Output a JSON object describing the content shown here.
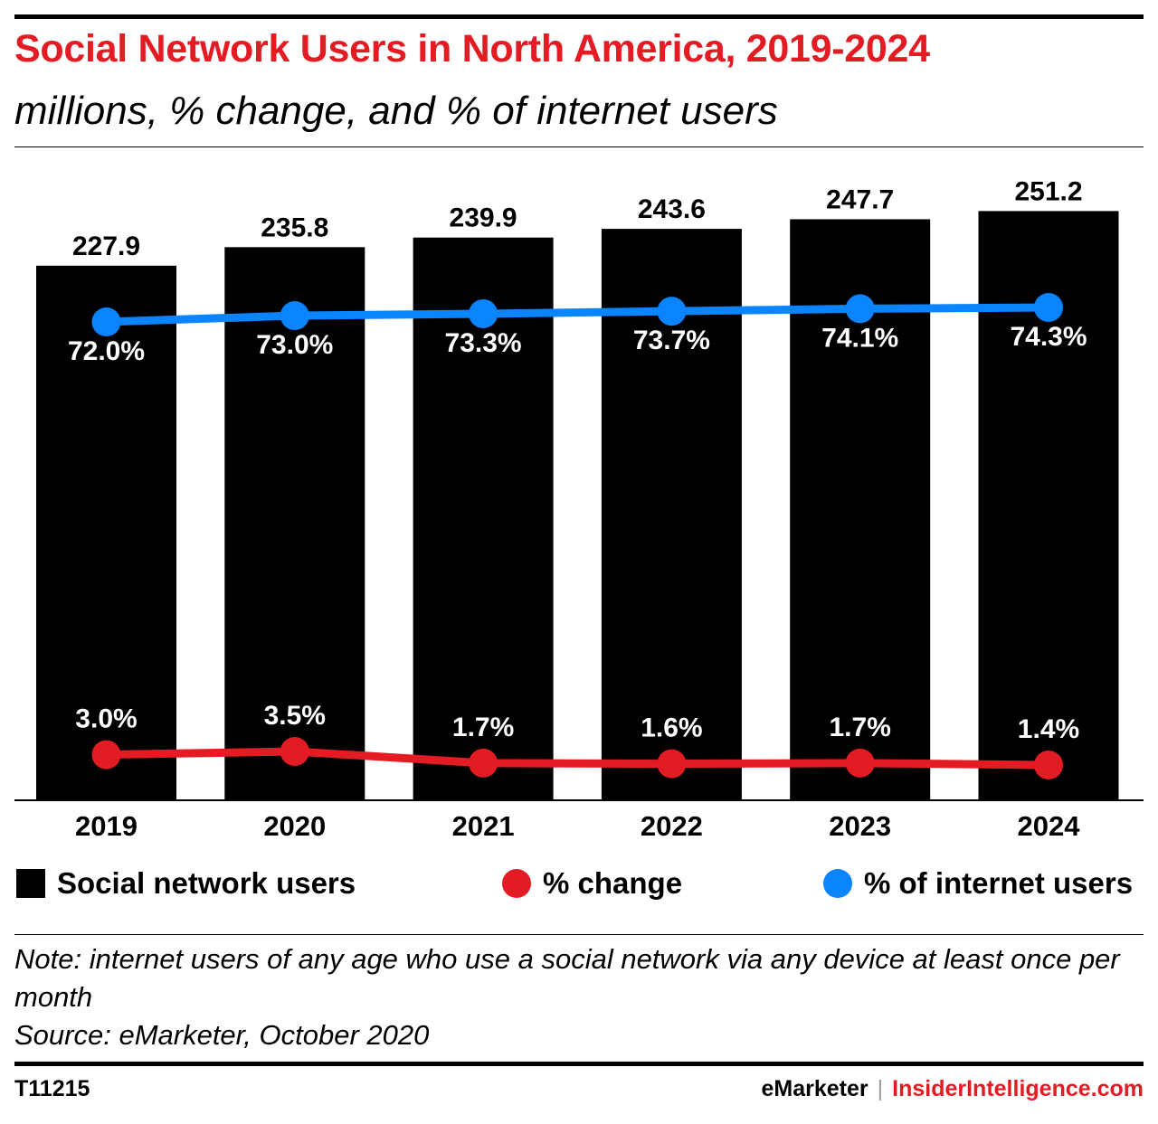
{
  "header": {
    "title": "Social Network Users in North America, 2019-2024",
    "subtitle": "millions, % change, and % of internet users"
  },
  "chart_data": {
    "type": "bar",
    "title": "Social Network Users in North America, 2019-2024",
    "subtitle": "millions, % change, and % of internet users",
    "categories": [
      "2019",
      "2020",
      "2021",
      "2022",
      "2023",
      "2024"
    ],
    "series": [
      {
        "name": "Social network users",
        "type": "bar",
        "color": "#000000",
        "values": [
          227.9,
          235.8,
          239.9,
          243.6,
          247.7,
          251.2
        ],
        "labels": [
          "227.9",
          "235.8",
          "239.9",
          "243.6",
          "247.7",
          "251.2"
        ]
      },
      {
        "name": "% change",
        "type": "line",
        "color": "#e31b23",
        "values": [
          3.0,
          3.5,
          1.7,
          1.6,
          1.7,
          1.4
        ],
        "labels": [
          "3.0%",
          "3.5%",
          "1.7%",
          "1.6%",
          "1.7%",
          "1.4%"
        ]
      },
      {
        "name": "% of internet users",
        "type": "line",
        "color": "#0a84ff",
        "values": [
          72.0,
          73.0,
          73.3,
          73.7,
          74.1,
          74.3
        ],
        "labels": [
          "72.0%",
          "73.0%",
          "73.3%",
          "73.7%",
          "74.1%",
          "74.3%"
        ]
      }
    ],
    "legend_placement": "bottom",
    "grid": false
  },
  "legend": {
    "bar_label": "Social network users",
    "change_label": "% change",
    "share_label": "% of internet users"
  },
  "note": {
    "text": "Note: internet users of any age who use a social network via any device at least once per month",
    "source": "Source: eMarketer, October 2020"
  },
  "footer": {
    "id": "T11215",
    "brand": "eMarketer",
    "separator": "|",
    "site": "InsiderIntelligence.com"
  }
}
